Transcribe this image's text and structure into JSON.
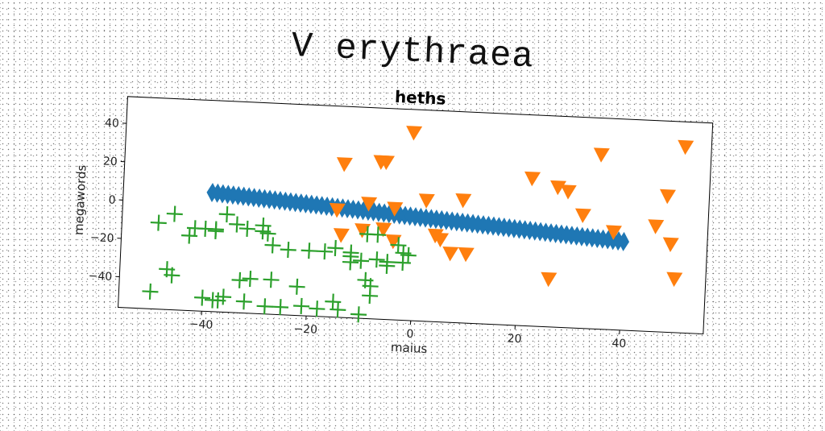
{
  "suptitle": "V erythraea",
  "chart_data": {
    "type": "scatter",
    "title": "heths",
    "xlabel": "maius",
    "ylabel": "megawords",
    "xlim": [
      -56,
      56
    ],
    "ylim": [
      -56,
      54
    ],
    "xticks": [
      -40,
      -20,
      0,
      20,
      40
    ],
    "yticks": [
      -40,
      -20,
      0,
      20,
      40
    ],
    "grid": false,
    "series": [
      {
        "marker": "diamond",
        "color": "#1f77b4",
        "points": [
          [
            -39,
            6
          ],
          [
            -38,
            5.8
          ],
          [
            -37,
            5.6
          ],
          [
            -36,
            5.4
          ],
          [
            -35,
            5.2
          ],
          [
            -34,
            5
          ],
          [
            -33,
            4.8
          ],
          [
            -32,
            4.6
          ],
          [
            -31,
            4.4
          ],
          [
            -30,
            4.2
          ],
          [
            -29,
            4
          ],
          [
            -28,
            3.8
          ],
          [
            -27,
            3.6
          ],
          [
            -26,
            3.4
          ],
          [
            -25,
            3.2
          ],
          [
            -24,
            3
          ],
          [
            -23,
            2.8
          ],
          [
            -22,
            2.6
          ],
          [
            -21,
            2.4
          ],
          [
            -20,
            2.2
          ],
          [
            -19,
            2
          ],
          [
            -18,
            1.8
          ],
          [
            -17,
            1.6
          ],
          [
            -16,
            1.4
          ],
          [
            -15,
            1.2
          ],
          [
            -14,
            1
          ],
          [
            -13,
            0.8
          ],
          [
            -12,
            0.6
          ],
          [
            -11,
            0.4
          ],
          [
            -10,
            0.2
          ],
          [
            -9,
            0
          ],
          [
            -8,
            -0.2
          ],
          [
            -7,
            -0.4
          ],
          [
            -6,
            -0.6
          ],
          [
            -5,
            -0.8
          ],
          [
            -4,
            -1
          ],
          [
            -3,
            -1.2
          ],
          [
            -2,
            -1.4
          ],
          [
            -1,
            -1.6
          ],
          [
            0,
            -1.8
          ],
          [
            1,
            -2
          ],
          [
            2,
            -2.2
          ],
          [
            3,
            -2.4
          ],
          [
            4,
            -2.6
          ],
          [
            5,
            -2.8
          ],
          [
            6,
            -3
          ],
          [
            7,
            -3.2
          ],
          [
            8,
            -3.4
          ],
          [
            9,
            -3.6
          ],
          [
            10,
            -3.8
          ],
          [
            11,
            -4
          ],
          [
            12,
            -4.2
          ],
          [
            13,
            -4.4
          ],
          [
            14,
            -4.6
          ],
          [
            15,
            -4.8
          ],
          [
            16,
            -5
          ],
          [
            17,
            -5.2
          ],
          [
            18,
            -5.4
          ],
          [
            19,
            -5.6
          ],
          [
            20,
            -5.8
          ],
          [
            21,
            -6
          ],
          [
            22,
            -6.2
          ],
          [
            23,
            -6.4
          ],
          [
            24,
            -6.6
          ],
          [
            25,
            -6.8
          ],
          [
            26,
            -7
          ],
          [
            27,
            -7.2
          ],
          [
            28,
            -7.4
          ],
          [
            29,
            -7.6
          ],
          [
            30,
            -7.8
          ],
          [
            31,
            -8
          ],
          [
            32,
            -8.2
          ],
          [
            33,
            -8.4
          ],
          [
            34,
            -8.6
          ],
          [
            35,
            -8.8
          ],
          [
            36,
            -9
          ],
          [
            37,
            -9.2
          ],
          [
            38,
            -9.4
          ],
          [
            39,
            -9.6
          ],
          [
            40,
            -9.8
          ]
        ]
      },
      {
        "marker": "triangle-down",
        "color": "#ff7f0e",
        "points": [
          [
            -1,
            42
          ],
          [
            -7,
            26
          ],
          [
            -6,
            26
          ],
          [
            -14,
            24
          ],
          [
            2,
            7
          ],
          [
            -9,
            4
          ],
          [
            -4,
            2
          ],
          [
            -15,
            0
          ],
          [
            -14,
            -13
          ],
          [
            -10,
            -10
          ],
          [
            -6,
            -9
          ],
          [
            -4,
            -15
          ],
          [
            4,
            -11
          ],
          [
            5,
            -13
          ],
          [
            7,
            -20
          ],
          [
            10,
            -20
          ],
          [
            9,
            8
          ],
          [
            22,
            21
          ],
          [
            27,
            17
          ],
          [
            29,
            15
          ],
          [
            32,
            3
          ],
          [
            26,
            -31
          ],
          [
            35,
            35
          ],
          [
            38,
            -5
          ],
          [
            46,
            -1
          ],
          [
            49,
            -10
          ],
          [
            50,
            -28
          ],
          [
            48,
            15
          ],
          [
            51,
            41
          ]
        ]
      },
      {
        "marker": "plus",
        "color": "#2ca02c",
        "points": [
          [
            -50,
            -47
          ],
          [
            -49,
            -11
          ],
          [
            -46,
            -6
          ],
          [
            -47,
            -35
          ],
          [
            -46,
            -38
          ],
          [
            -43,
            -17
          ],
          [
            -42,
            -13
          ],
          [
            -40,
            -13
          ],
          [
            -38,
            -14
          ],
          [
            -38,
            -13
          ],
          [
            -36,
            -5
          ],
          [
            -34,
            -10
          ],
          [
            -32,
            -12
          ],
          [
            -29,
            -10
          ],
          [
            -29,
            -13
          ],
          [
            -28,
            -14
          ],
          [
            -27,
            -20
          ],
          [
            -24,
            -22
          ],
          [
            -20,
            -22
          ],
          [
            -17,
            -22
          ],
          [
            -15,
            -20
          ],
          [
            -12,
            -22
          ],
          [
            -12,
            -24
          ],
          [
            -12,
            -27
          ],
          [
            -10,
            -26
          ],
          [
            -9,
            -12
          ],
          [
            -7,
            -12
          ],
          [
            -7,
            -25
          ],
          [
            -5,
            -26
          ],
          [
            -5,
            -28
          ],
          [
            -2,
            -26
          ],
          [
            -1,
            -22
          ],
          [
            -3,
            -17
          ],
          [
            -2,
            -21
          ],
          [
            -9,
            -36
          ],
          [
            -8,
            -39
          ],
          [
            -8,
            -44
          ],
          [
            -15,
            -48
          ],
          [
            -14,
            -52
          ],
          [
            -10,
            -54
          ],
          [
            -18,
            -52
          ],
          [
            -22,
            -41
          ],
          [
            -27,
            -38
          ],
          [
            -31,
            -38
          ],
          [
            -33,
            -39
          ],
          [
            -36,
            -48
          ],
          [
            -38,
            -50
          ],
          [
            -40,
            -49
          ],
          [
            -37,
            -50
          ],
          [
            -32,
            -50
          ],
          [
            -28,
            -52
          ],
          [
            -25,
            -52
          ],
          [
            -21,
            -51
          ]
        ]
      }
    ]
  }
}
